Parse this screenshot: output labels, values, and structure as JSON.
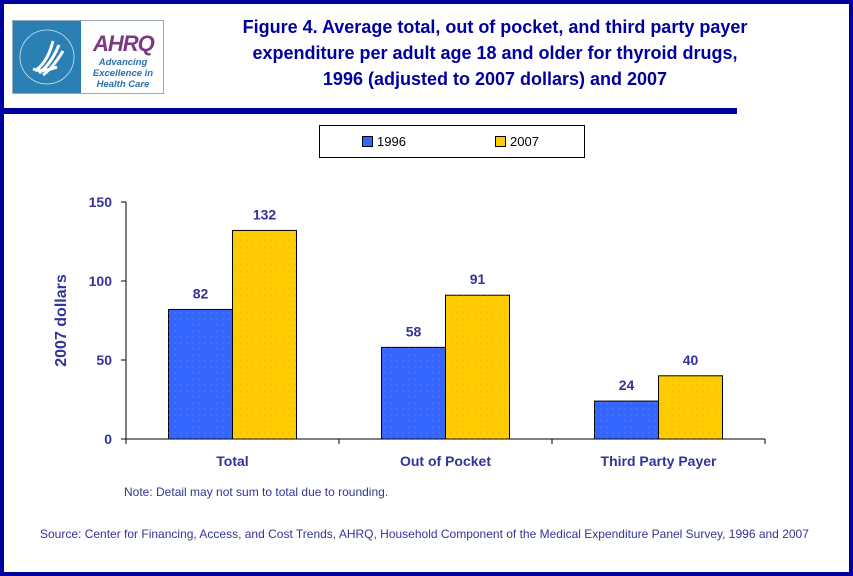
{
  "logo": {
    "brand": "AHRQ",
    "tagline": "Advancing Excellence in Health Care"
  },
  "chart_data": {
    "type": "bar",
    "title": "Figure 4. Average total, out of pocket, and third party payer expenditure per adult age 18 and older for thyroid drugs, 1996 (adjusted to 2007 dollars) and 2007",
    "title_lines": [
      "Figure 4. Average total, out of pocket, and third party payer",
      "expenditure per adult age 18 and older for thyroid drugs,",
      "1996 (adjusted to 2007 dollars) and 2007"
    ],
    "categories": [
      "Total",
      "Out of Pocket",
      "Third Party Payer"
    ],
    "series": [
      {
        "name": "1996",
        "values": [
          82,
          58,
          24
        ],
        "color": "#3366ff"
      },
      {
        "name": "2007",
        "values": [
          132,
          91,
          40
        ],
        "color": "#ffcc00"
      }
    ],
    "ylabel": "2007 dollars",
    "xlabel": "",
    "ylim": [
      0,
      150
    ],
    "yticks": [
      0,
      50,
      100,
      150
    ],
    "grid": false,
    "legend": "top-center"
  },
  "note": "Note: Detail may not sum to total due to rounding.",
  "source": "Source: Center for Financing, Access, and Cost Trends, AHRQ, Household Component of the Medical Expenditure Panel Survey, 1996 and 2007"
}
